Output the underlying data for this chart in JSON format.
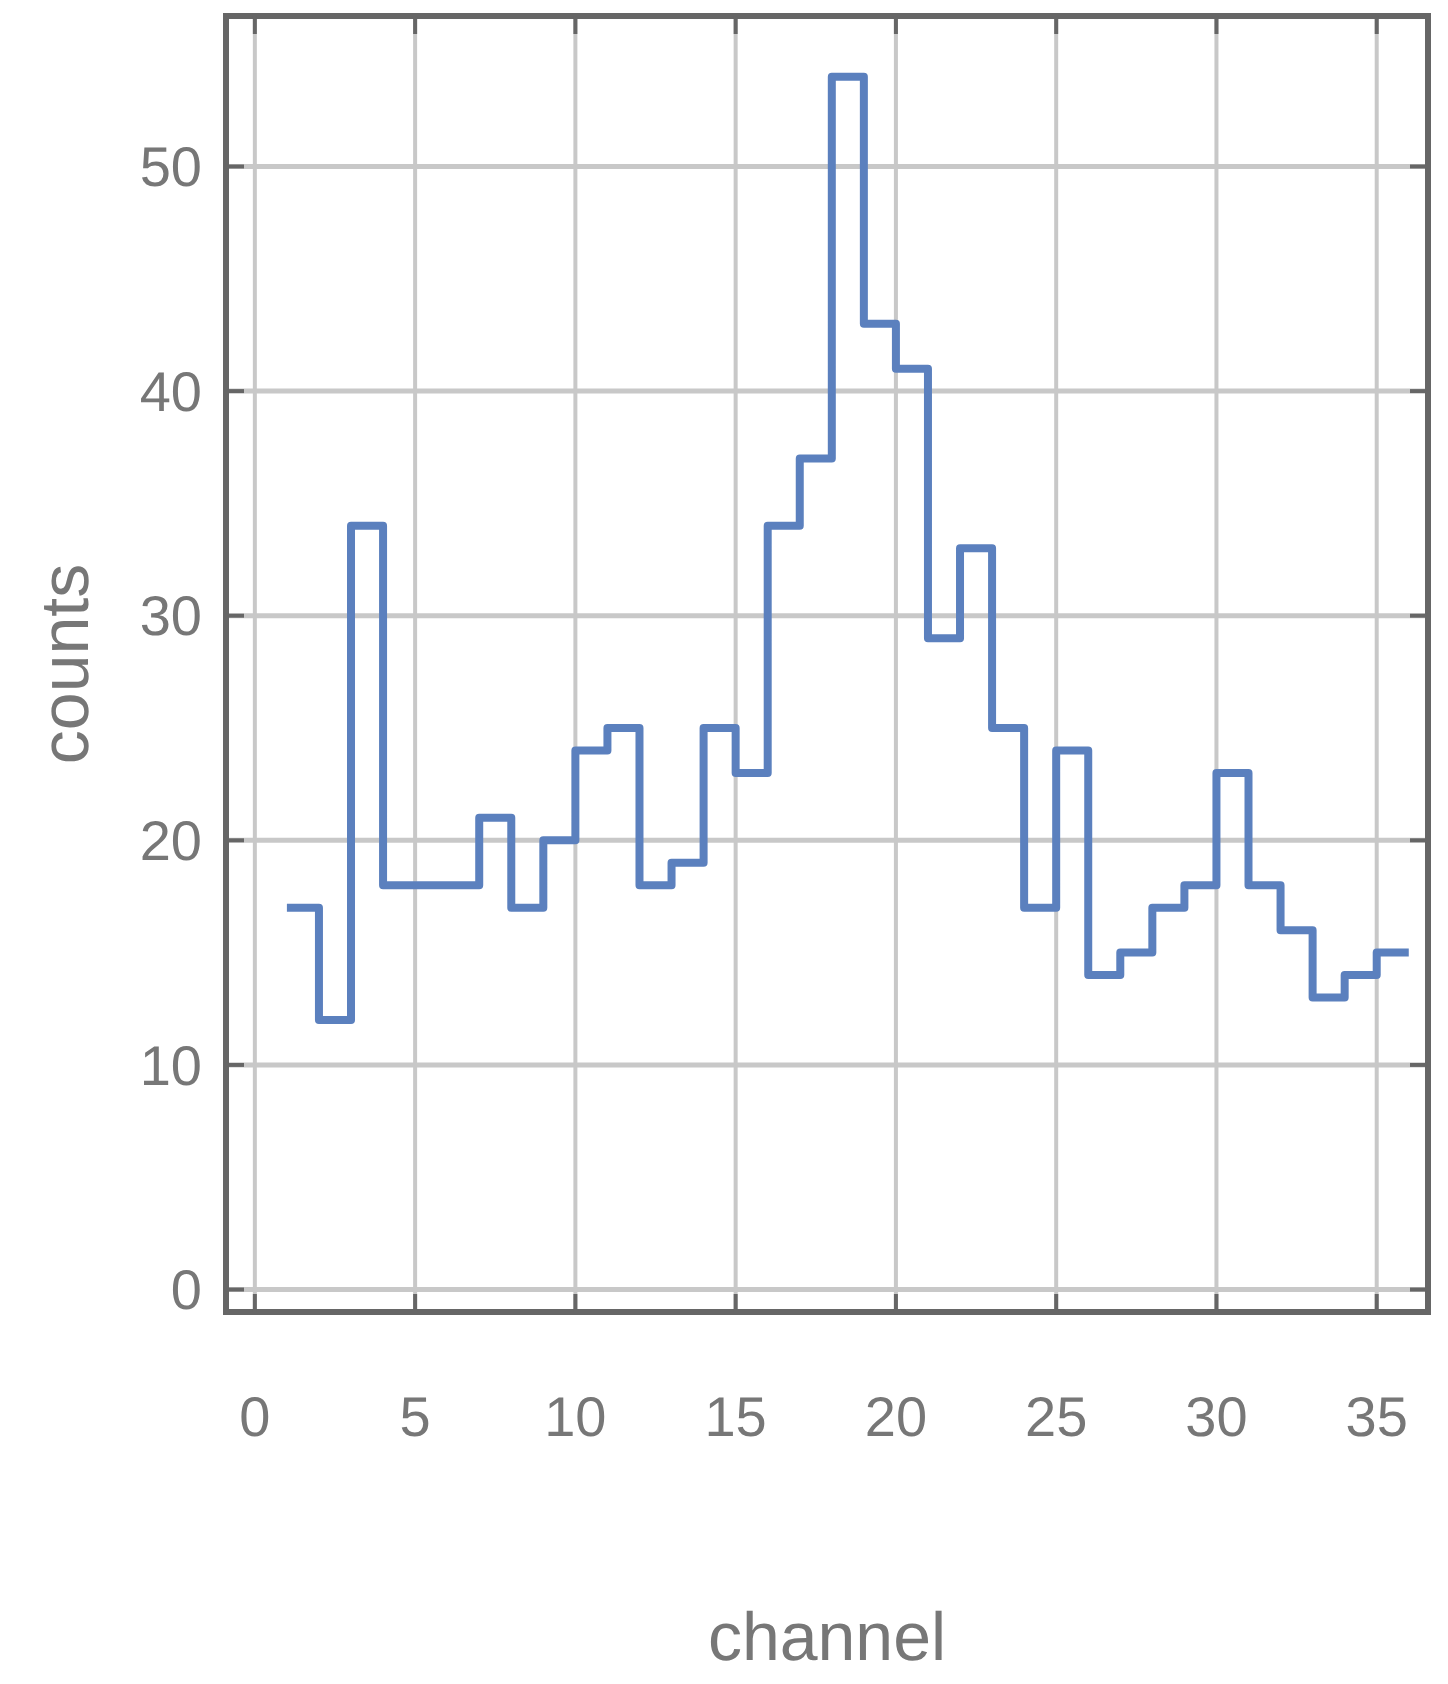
{
  "chart_data": {
    "type": "histogram",
    "xlabel": "channel",
    "ylabel": "counts",
    "bins": [
      1,
      2,
      3,
      4,
      5,
      6,
      7,
      8,
      9,
      10,
      11,
      12,
      13,
      14,
      15,
      16,
      17,
      18,
      19,
      20,
      21,
      22,
      23,
      24,
      25,
      26,
      27,
      28,
      29,
      30,
      31,
      32,
      33,
      34,
      35,
      36
    ],
    "values": [
      17,
      12,
      34,
      18,
      18,
      18,
      21,
      17,
      20,
      24,
      25,
      18,
      19,
      25,
      23,
      34,
      37,
      54,
      43,
      41,
      29,
      33,
      25,
      17,
      24,
      14,
      15,
      17,
      18,
      23,
      18,
      16,
      13,
      14,
      15
    ],
    "color": "#5b80be",
    "xlim": [
      -0.9,
      36.6
    ],
    "xticks": [
      0,
      5,
      10,
      15,
      20,
      25,
      30,
      35
    ],
    "ylim": [
      -1,
      56.7
    ],
    "yticks": [
      0,
      10,
      20,
      30,
      40,
      50
    ],
    "grid": true
  }
}
